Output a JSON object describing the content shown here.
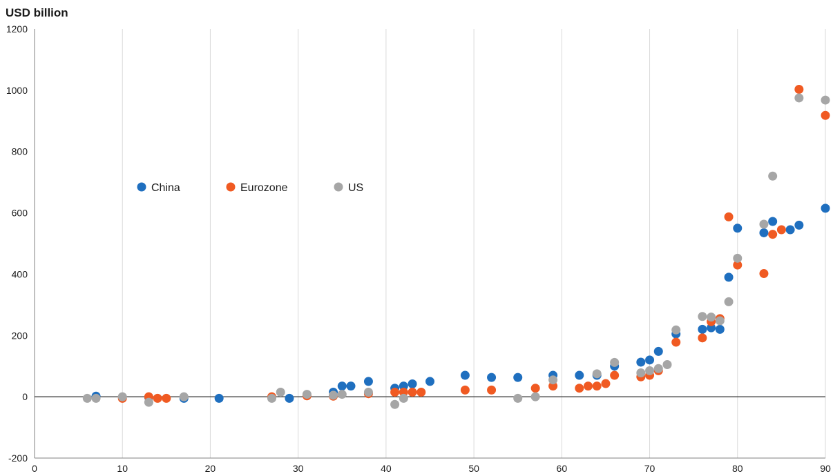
{
  "chart_data": {
    "type": "scatter",
    "title": "USD billion",
    "xlabel": "",
    "ylabel": "",
    "xlim": [
      0,
      90
    ],
    "ylim": [
      -200,
      1200
    ],
    "x_ticks": [
      "0",
      "10",
      "20",
      "30",
      "40",
      "50",
      "60",
      "70",
      "80",
      "90"
    ],
    "y_ticks": [
      "1200",
      "1000",
      "800",
      "600",
      "400",
      "200",
      "0",
      "-200"
    ],
    "grid": "vertical",
    "legend_position": "upper-left",
    "series": [
      {
        "name": "China",
        "color": "#1f6fbf",
        "x": [
          7,
          13,
          17,
          21,
          29,
          34,
          35,
          36,
          38,
          41,
          42,
          43,
          45,
          49,
          52,
          55,
          59,
          62,
          64,
          66,
          69,
          70,
          71,
          73,
          76,
          77,
          78,
          79,
          80,
          83,
          84,
          86,
          87,
          90
        ],
        "y": [
          2,
          -2,
          -5,
          -5,
          -5,
          15,
          35,
          35,
          50,
          28,
          35,
          42,
          50,
          70,
          63,
          63,
          70,
          70,
          70,
          100,
          113,
          120,
          148,
          205,
          220,
          225,
          220,
          390,
          550,
          535,
          572,
          545,
          560,
          615
        ]
      },
      {
        "name": "Eurozone",
        "color": "#f05a22",
        "x": [
          10,
          13,
          14,
          15,
          27,
          31,
          34,
          38,
          41,
          42,
          43,
          44,
          49,
          52,
          57,
          59,
          62,
          63,
          64,
          65,
          66,
          69,
          70,
          71,
          73,
          76,
          77,
          78,
          79,
          80,
          83,
          84,
          85,
          87,
          90
        ],
        "y": [
          -5,
          0,
          -5,
          -5,
          0,
          3,
          2,
          10,
          15,
          15,
          15,
          15,
          22,
          22,
          28,
          35,
          28,
          35,
          35,
          43,
          70,
          65,
          70,
          85,
          178,
          192,
          245,
          255,
          587,
          430,
          402,
          530,
          545,
          1003,
          918
        ]
      },
      {
        "name": "US",
        "color": "#a6a6a6",
        "x": [
          6,
          7,
          10,
          13,
          17,
          27,
          28,
          31,
          34,
          35,
          38,
          41,
          42,
          55,
          57,
          59,
          64,
          66,
          69,
          70,
          71,
          72,
          73,
          76,
          77,
          78,
          79,
          80,
          83,
          84,
          87,
          90
        ],
        "y": [
          -5,
          -5,
          0,
          -18,
          0,
          -5,
          15,
          8,
          5,
          8,
          15,
          -25,
          -5,
          -5,
          0,
          55,
          75,
          112,
          78,
          85,
          92,
          105,
          218,
          262,
          260,
          248,
          310,
          452,
          563,
          720,
          975,
          968
        ]
      }
    ]
  }
}
